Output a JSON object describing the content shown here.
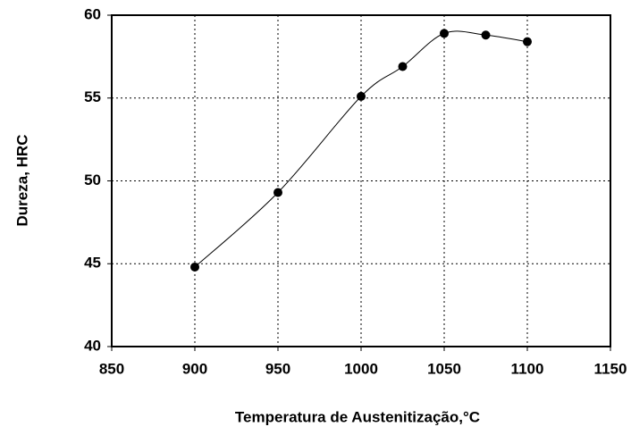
{
  "chart_data": {
    "type": "line",
    "xlabel": "Temperatura de Austenitização,°C",
    "ylabel": "Dureza, HRC",
    "x": [
      900,
      950,
      1000,
      1025,
      1050,
      1075,
      1100
    ],
    "series": [
      {
        "color": "#000000",
        "values": [
          44.8,
          49.3,
          55.1,
          56.9,
          58.9,
          58.8,
          58.4
        ]
      }
    ],
    "xlim": [
      850,
      1150
    ],
    "xticks": [
      850,
      900,
      950,
      1000,
      1050,
      1100,
      1150
    ],
    "ylim": [
      40,
      60
    ],
    "yticks": [
      40,
      45,
      50,
      55,
      60
    ],
    "grid": true
  }
}
